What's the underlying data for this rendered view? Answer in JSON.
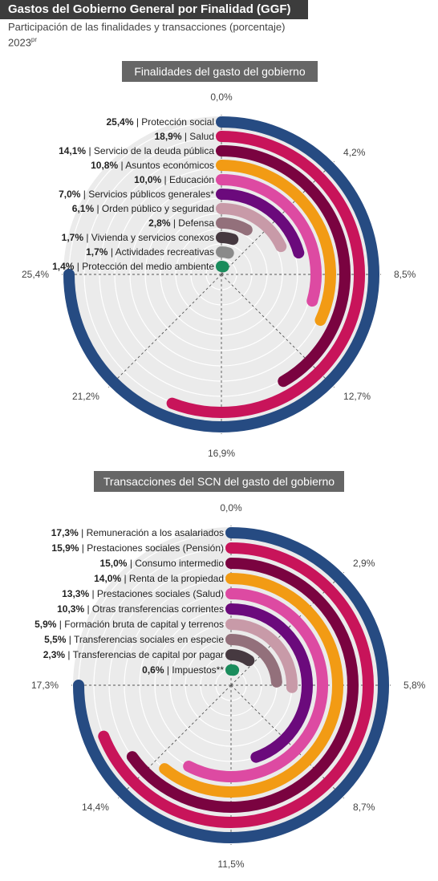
{
  "header": {
    "title": "Gastos del Gobierno General por Finalidad (GGF)",
    "subtitle": "Participación de las finalidades y transacciones (porcentaje)",
    "year": "2023",
    "year_sup": "pr"
  },
  "chart_data": [
    {
      "type": "radial-bar",
      "title": "Finalidades del gasto del gobierno",
      "axis_labels": [
        "0,0%",
        "4,2%",
        "8,5%",
        "12,7%",
        "16,9%",
        "21,2%",
        "25,4%"
      ],
      "axis_max": 25.4,
      "series": [
        {
          "name": "Protección social",
          "value": 25.4,
          "value_label": "25,4%",
          "color": "#264b82"
        },
        {
          "name": "Salud",
          "value": 18.9,
          "value_label": "18,9%",
          "color": "#c8145a"
        },
        {
          "name": "Servicio de la deuda pública",
          "value": 14.1,
          "value_label": "14,1%",
          "color": "#7a0340"
        },
        {
          "name": "Asuntos económicos",
          "value": 10.8,
          "value_label": "10,8%",
          "color": "#f29b14"
        },
        {
          "name": "Educación",
          "value": 10.0,
          "value_label": "10,0%",
          "color": "#dd4aa2"
        },
        {
          "name": "Servicios públicos generales*",
          "value": 7.0,
          "value_label": "7,0%",
          "color": "#6b0a7c"
        },
        {
          "name": "Orden público y seguridad",
          "value": 6.1,
          "value_label": "6,1%",
          "color": "#c89aa8"
        },
        {
          "name": "Defensa",
          "value": 2.8,
          "value_label": "2,8%",
          "color": "#93707b"
        },
        {
          "name": "Vivienda y servicios conexos",
          "value": 1.7,
          "value_label": "1,7%",
          "color": "#463940"
        },
        {
          "name": "Actividades recreativas",
          "value": 1.7,
          "value_label": "1,7%",
          "color": "#8a8a8a"
        },
        {
          "name": "Protección del medio ambiente",
          "value": 1.4,
          "value_label": "1,4%",
          "color": "#1a8c5c"
        }
      ]
    },
    {
      "type": "radial-bar",
      "title": "Transacciones del SCN del gasto del gobierno",
      "axis_labels": [
        "0,0%",
        "2,9%",
        "5,8%",
        "8,7%",
        "11,5%",
        "14,4%",
        "17,3%"
      ],
      "axis_max": 17.3,
      "series": [
        {
          "name": "Remuneración a los asalariados",
          "value": 17.3,
          "value_label": "17,3%",
          "color": "#264b82"
        },
        {
          "name": "Prestaciones sociales (Pensión)",
          "value": 15.9,
          "value_label": "15,9%",
          "color": "#c8145a"
        },
        {
          "name": "Consumo intermedio",
          "value": 15.0,
          "value_label": "15,0%",
          "color": "#7a0340"
        },
        {
          "name": "Renta de la propiedad",
          "value": 14.0,
          "value_label": "14,0%",
          "color": "#f29b14"
        },
        {
          "name": "Prestaciones sociales (Salud)",
          "value": 13.3,
          "value_label": "13,3%",
          "color": "#dd4aa2"
        },
        {
          "name": "Otras transferencias corrientes",
          "value": 10.3,
          "value_label": "10,3%",
          "color": "#6b0a7c"
        },
        {
          "name": "Formación bruta de capital y terrenos",
          "value": 5.9,
          "value_label": "5,9%",
          "color": "#c89aa8"
        },
        {
          "name": "Transferencias sociales en especie",
          "value": 5.5,
          "value_label": "5,5%",
          "color": "#93707b"
        },
        {
          "name": "Transferencias de capital por pagar",
          "value": 2.3,
          "value_label": "2,3%",
          "color": "#463940"
        },
        {
          "name": "Impuestos**",
          "value": 0.6,
          "value_label": "0,6%",
          "color": "#1a8c5c"
        }
      ]
    }
  ]
}
